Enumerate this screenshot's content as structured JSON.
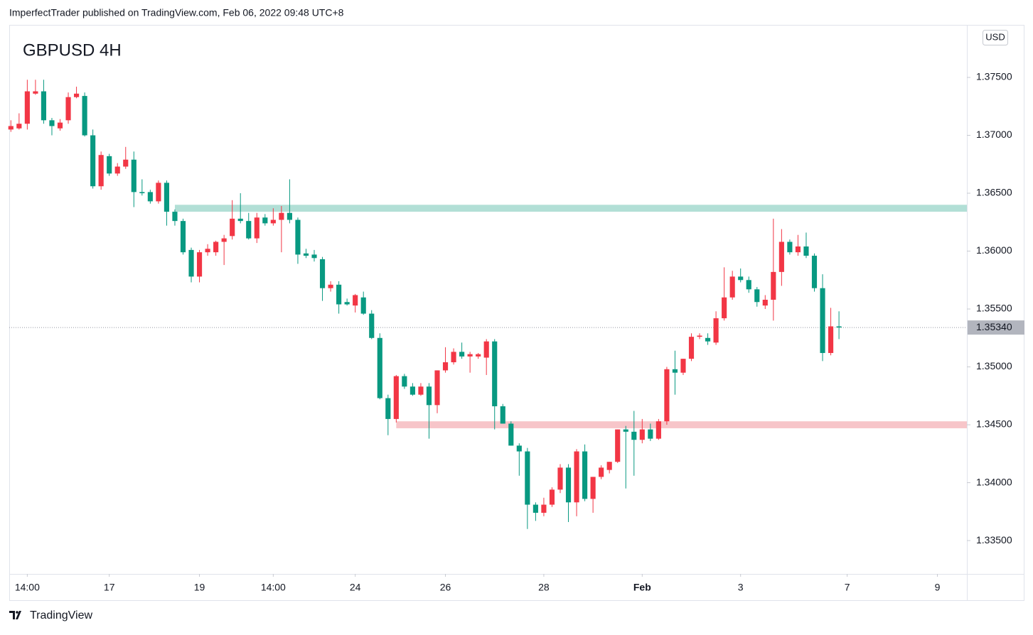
{
  "header": "ImperfectTrader published on TradingView.com, Feb 06, 2022 09:48 UTC+8",
  "footer": "TradingView",
  "chart_data": {
    "type": "candlestick",
    "title": "GBPUSD 4H",
    "currency": "USD",
    "up_color": "#f23645",
    "down_color": "#089981",
    "open": [
      1.3705,
      1.3706,
      1.371,
      1.3736,
      1.3738,
      1.3713,
      1.3706,
      1.3713,
      1.3733,
      1.3734,
      1.37,
      1.3656,
      1.3682,
      1.3667,
      1.3673,
      1.3679,
      1.3651,
      1.3651,
      1.3643,
      1.3659,
      1.3634,
      1.3626,
      1.3601,
      1.3578,
      1.3599,
      1.3599,
      1.3608,
      1.3613,
      1.3628,
      1.3626,
      1.3611,
      1.3629,
      1.3624,
      1.3627,
      1.3633,
      1.3627,
      1.3598,
      1.3597,
      1.3593,
      1.3568,
      1.3571,
      1.3556,
      1.3553,
      1.356,
      1.3546,
      1.3525,
      1.3473,
      1.3455,
      1.3492,
      1.3483,
      1.3476,
      1.3483,
      1.3467,
      1.3497,
      1.3504,
      1.3513,
      1.3509,
      1.3509,
      1.3508,
      1.3522,
      1.3466,
      1.3451,
      1.3432,
      1.3427,
      1.3381,
      1.3374,
      1.3381,
      1.3394,
      1.3413,
      1.3383,
      1.3427,
      1.3386,
      1.3405,
      1.3411,
      1.3418,
      1.3446,
      1.3444,
      1.3437,
      1.3446,
      1.3438,
      1.3453,
      1.3498,
      1.3495,
      1.3507,
      1.3526,
      1.3525,
      1.3521,
      1.3542,
      1.356,
      1.3578,
      1.3575,
      1.3567,
      1.3553,
      1.3558,
      1.3582,
      1.3608,
      1.3599,
      1.3604,
      1.3596,
      1.3568,
      1.3512,
      1.3535
    ],
    "high": [
      1.3713,
      1.3719,
      1.3748,
      1.3748,
      1.3748,
      1.3715,
      1.3714,
      1.3737,
      1.3742,
      1.3737,
      1.3705,
      1.3686,
      1.3684,
      1.3676,
      1.369,
      1.3686,
      1.3662,
      1.3653,
      1.3661,
      1.3661,
      1.3636,
      1.3628,
      1.3603,
      1.3601,
      1.3606,
      1.3609,
      1.3614,
      1.3644,
      1.365,
      1.3633,
      1.3633,
      1.3632,
      1.3637,
      1.3639,
      1.3662,
      1.3629,
      1.3602,
      1.3601,
      1.3595,
      1.3574,
      1.3574,
      1.3559,
      1.3563,
      1.3565,
      1.3549,
      1.3529,
      1.3476,
      1.3493,
      1.3494,
      1.3486,
      1.3486,
      1.3486,
      1.3497,
      1.3517,
      1.3516,
      1.3521,
      1.3513,
      1.3512,
      1.3524,
      1.3524,
      1.3468,
      1.3453,
      1.3434,
      1.343,
      1.3383,
      1.3387,
      1.3396,
      1.3416,
      1.3416,
      1.3429,
      1.3433,
      1.3405,
      1.3415,
      1.3418,
      1.3446,
      1.3449,
      1.3462,
      1.3455,
      1.3451,
      1.3455,
      1.35,
      1.3514,
      1.3507,
      1.3529,
      1.3529,
      1.3529,
      1.3548,
      1.3586,
      1.3583,
      1.3585,
      1.3578,
      1.3569,
      1.3562,
      1.3628,
      1.3619,
      1.361,
      1.3614,
      1.3616,
      1.3598,
      1.358,
      1.3551,
      1.3548
    ],
    "low": [
      1.3703,
      1.3705,
      1.3705,
      1.3735,
      1.371,
      1.37,
      1.3704,
      1.371,
      1.3732,
      1.3699,
      1.3654,
      1.3653,
      1.3665,
      1.3665,
      1.3671,
      1.3638,
      1.3648,
      1.3641,
      1.3641,
      1.3622,
      1.3622,
      1.3597,
      1.3573,
      1.3573,
      1.3596,
      1.3596,
      1.3588,
      1.361,
      1.3624,
      1.361,
      1.3607,
      1.3622,
      1.3622,
      1.3599,
      1.3624,
      1.3589,
      1.3594,
      1.3591,
      1.3557,
      1.3565,
      1.3546,
      1.3553,
      1.3547,
      1.3545,
      1.3524,
      1.3472,
      1.3441,
      1.3452,
      1.3481,
      1.3475,
      1.3475,
      1.3438,
      1.346,
      1.3495,
      1.3502,
      1.3507,
      1.3495,
      1.3507,
      1.3493,
      1.3446,
      1.3451,
      1.3432,
      1.3406,
      1.336,
      1.3367,
      1.3371,
      1.3379,
      1.3391,
      1.3366,
      1.3371,
      1.3384,
      1.3374,
      1.3403,
      1.3408,
      1.3417,
      1.3395,
      1.3406,
      1.3434,
      1.3436,
      1.3437,
      1.345,
      1.3476,
      1.3493,
      1.3505,
      1.3524,
      1.3519,
      1.3519,
      1.354,
      1.3558,
      1.3573,
      1.3564,
      1.3552,
      1.355,
      1.354,
      1.357,
      1.3597,
      1.3596,
      1.3594,
      1.3565,
      1.3505,
      1.351,
      1.3524
    ],
    "close": [
      1.3708,
      1.371,
      1.3738,
      1.3738,
      1.3713,
      1.3708,
      1.3711,
      1.3733,
      1.3736,
      1.37,
      1.3656,
      1.3683,
      1.3667,
      1.3673,
      1.3679,
      1.3651,
      1.365,
      1.3643,
      1.3659,
      1.3634,
      1.3626,
      1.3599,
      1.3578,
      1.3599,
      1.3602,
      1.3608,
      1.3611,
      1.3628,
      1.3626,
      1.3611,
      1.3629,
      1.3624,
      1.3627,
      1.3633,
      1.3627,
      1.3597,
      1.3596,
      1.3594,
      1.3568,
      1.3571,
      1.3554,
      1.3554,
      1.3562,
      1.3546,
      1.3525,
      1.3473,
      1.3455,
      1.3492,
      1.3483,
      1.3476,
      1.3483,
      1.3467,
      1.3497,
      1.3504,
      1.3513,
      1.3509,
      1.3511,
      1.3511,
      1.3522,
      1.3466,
      1.3451,
      1.3432,
      1.3427,
      1.3381,
      1.3374,
      1.3381,
      1.3394,
      1.3413,
      1.3383,
      1.3427,
      1.3386,
      1.3405,
      1.3413,
      1.3418,
      1.3446,
      1.3444,
      1.3437,
      1.3446,
      1.3438,
      1.3453,
      1.3498,
      1.3495,
      1.3507,
      1.3526,
      1.3527,
      1.3522,
      1.3542,
      1.356,
      1.3578,
      1.3575,
      1.3567,
      1.3556,
      1.3558,
      1.3582,
      1.3608,
      1.3599,
      1.3604,
      1.3596,
      1.3568,
      1.3512,
      1.3535,
      1.3534
    ],
    "xlim": [
      -0.2,
      116.6
    ],
    "xticks": [
      {
        "value": 2,
        "label": "14:00"
      },
      {
        "value": 12,
        "label": "17"
      },
      {
        "value": 23,
        "label": "19"
      },
      {
        "value": 32,
        "label": "14:00"
      },
      {
        "value": 42,
        "label": "24"
      },
      {
        "value": 53,
        "label": "26"
      },
      {
        "value": 65,
        "label": "28"
      },
      {
        "value": 77,
        "label": "Feb",
        "bold": true
      },
      {
        "value": 89,
        "label": "3"
      },
      {
        "value": 102,
        "label": "7"
      },
      {
        "value": 113,
        "label": "9"
      }
    ],
    "ylim": [
      1.33212,
      1.37954
    ],
    "yticks": [
      {
        "value": 1.335,
        "label": "1.33500"
      },
      {
        "value": 1.34,
        "label": "1.34000"
      },
      {
        "value": 1.345,
        "label": "1.34500"
      },
      {
        "value": 1.35,
        "label": "1.35000"
      },
      {
        "value": 1.355,
        "label": "1.35500"
      },
      {
        "value": 1.36,
        "label": "1.36000"
      },
      {
        "value": 1.365,
        "label": "1.36500"
      },
      {
        "value": 1.37,
        "label": "1.37000"
      },
      {
        "value": 1.375,
        "label": "1.37500"
      }
    ],
    "last_price": {
      "value": 1.3534,
      "label": "1.35340"
    },
    "zones": [
      {
        "from": 1.3634,
        "to": 1.364,
        "start": 20,
        "color": "#b2dfd6"
      },
      {
        "from": 1.3447,
        "to": 1.3453,
        "start": 47,
        "color": "#f7c5c9"
      }
    ]
  }
}
